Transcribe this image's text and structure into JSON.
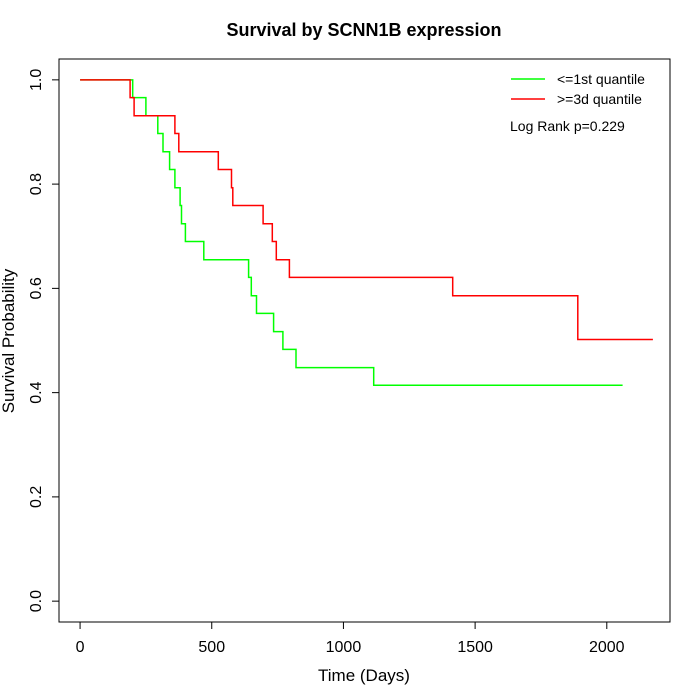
{
  "chart_data": {
    "type": "line",
    "step": true,
    "title": "Survival by SCNN1B expression",
    "xlabel": "Time (Days)",
    "ylabel": "Survival Probability",
    "xlim": [
      -80,
      2240
    ],
    "ylim": [
      -0.04,
      1.04
    ],
    "xticks": [
      0,
      500,
      1000,
      1500,
      2000
    ],
    "yticks": [
      0.0,
      0.2,
      0.4,
      0.6,
      0.8,
      1.0
    ],
    "xtick_labels": [
      "0",
      "500",
      "1000",
      "1500",
      "2000"
    ],
    "ytick_labels": [
      "0.0",
      "0.2",
      "0.4",
      "0.6",
      "0.8",
      "1.0"
    ],
    "grid": false,
    "legend_position": "top-right",
    "annotation": "Log Rank p=0.229",
    "series": [
      {
        "name": "<=1st quantile",
        "color": "#00ff00",
        "points": [
          [
            0,
            1.0
          ],
          [
            200,
            1.0
          ],
          [
            200,
            0.966
          ],
          [
            250,
            0.966
          ],
          [
            250,
            0.931
          ],
          [
            295,
            0.931
          ],
          [
            295,
            0.897
          ],
          [
            315,
            0.897
          ],
          [
            315,
            0.862
          ],
          [
            340,
            0.862
          ],
          [
            340,
            0.828
          ],
          [
            360,
            0.828
          ],
          [
            360,
            0.793
          ],
          [
            380,
            0.793
          ],
          [
            380,
            0.759
          ],
          [
            385,
            0.759
          ],
          [
            385,
            0.724
          ],
          [
            400,
            0.724
          ],
          [
            400,
            0.69
          ],
          [
            470,
            0.69
          ],
          [
            470,
            0.655
          ],
          [
            640,
            0.655
          ],
          [
            640,
            0.621
          ],
          [
            650,
            0.621
          ],
          [
            650,
            0.586
          ],
          [
            670,
            0.586
          ],
          [
            670,
            0.552
          ],
          [
            735,
            0.552
          ],
          [
            735,
            0.517
          ],
          [
            770,
            0.517
          ],
          [
            770,
            0.483
          ],
          [
            820,
            0.483
          ],
          [
            820,
            0.448
          ],
          [
            1115,
            0.448
          ],
          [
            1115,
            0.414
          ],
          [
            2060,
            0.414
          ]
        ]
      },
      {
        "name": ">=3d quantile",
        "color": "#ff0000",
        "points": [
          [
            0,
            1.0
          ],
          [
            190,
            1.0
          ],
          [
            190,
            0.966
          ],
          [
            205,
            0.966
          ],
          [
            205,
            0.931
          ],
          [
            360,
            0.931
          ],
          [
            360,
            0.897
          ],
          [
            375,
            0.897
          ],
          [
            375,
            0.862
          ],
          [
            525,
            0.862
          ],
          [
            525,
            0.828
          ],
          [
            575,
            0.828
          ],
          [
            575,
            0.793
          ],
          [
            580,
            0.793
          ],
          [
            580,
            0.759
          ],
          [
            695,
            0.759
          ],
          [
            695,
            0.724
          ],
          [
            730,
            0.724
          ],
          [
            730,
            0.69
          ],
          [
            745,
            0.69
          ],
          [
            745,
            0.655
          ],
          [
            795,
            0.655
          ],
          [
            795,
            0.621
          ],
          [
            1415,
            0.621
          ],
          [
            1415,
            0.586
          ],
          [
            1890,
            0.586
          ],
          [
            1890,
            0.502
          ],
          [
            2175,
            0.502
          ]
        ]
      }
    ]
  }
}
